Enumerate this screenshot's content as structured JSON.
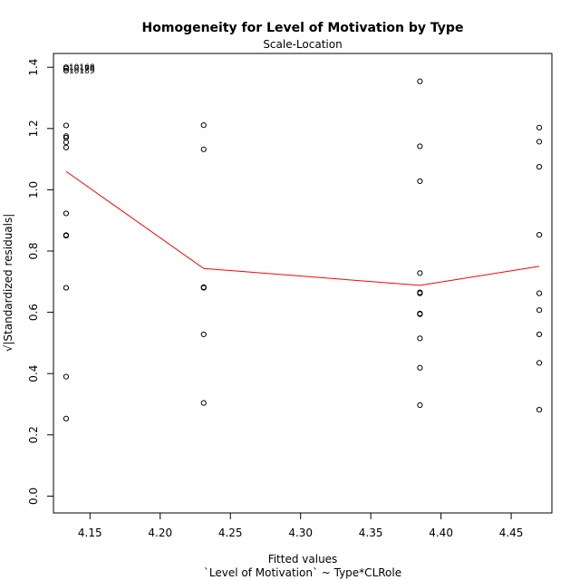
{
  "chart_data": {
    "type": "scatter",
    "title": "Homogeneity for Level of Motivation by Type",
    "subtitle": "Scale-Location",
    "xlabel": "Fitted values",
    "xlabel2": "`Level of Motivation` ~ Type*CLRole",
    "ylabel": "√|Standardized residuals|",
    "xlim": [
      4.124,
      4.479
    ],
    "ylim": [
      -0.055,
      1.445
    ],
    "xticks": [
      4.15,
      4.2,
      4.25,
      4.3,
      4.35,
      4.4,
      4.45
    ],
    "xtick_labels": [
      "4.15",
      "4.20",
      "4.25",
      "4.30",
      "4.35",
      "4.40",
      "4.45"
    ],
    "yticks": [
      0.0,
      0.2,
      0.4,
      0.6,
      0.8,
      1.0,
      1.2,
      1.4
    ],
    "ytick_labels": [
      "0.0",
      "0.2",
      "0.4",
      "0.6",
      "0.8",
      "1.0",
      "1.2",
      "1.4"
    ],
    "grid": false,
    "points": [
      {
        "x": 4.133,
        "y": 1.4
      },
      {
        "x": 4.133,
        "y": 1.396
      },
      {
        "x": 4.133,
        "y": 1.389
      },
      {
        "x": 4.133,
        "y": 1.21
      },
      {
        "x": 4.133,
        "y": 1.175
      },
      {
        "x": 4.133,
        "y": 1.17
      },
      {
        "x": 4.133,
        "y": 1.155
      },
      {
        "x": 4.133,
        "y": 1.138
      },
      {
        "x": 4.133,
        "y": 0.923
      },
      {
        "x": 4.133,
        "y": 0.852
      },
      {
        "x": 4.133,
        "y": 0.85
      },
      {
        "x": 4.133,
        "y": 0.68
      },
      {
        "x": 4.133,
        "y": 0.39
      },
      {
        "x": 4.133,
        "y": 0.253
      },
      {
        "x": 4.231,
        "y": 1.211
      },
      {
        "x": 4.231,
        "y": 1.132
      },
      {
        "x": 4.231,
        "y": 0.682
      },
      {
        "x": 4.231,
        "y": 0.68
      },
      {
        "x": 4.231,
        "y": 0.528
      },
      {
        "x": 4.231,
        "y": 0.304
      },
      {
        "x": 4.385,
        "y": 1.354
      },
      {
        "x": 4.385,
        "y": 1.142
      },
      {
        "x": 4.385,
        "y": 1.028
      },
      {
        "x": 4.385,
        "y": 0.728
      },
      {
        "x": 4.385,
        "y": 0.665
      },
      {
        "x": 4.385,
        "y": 0.662
      },
      {
        "x": 4.385,
        "y": 0.596
      },
      {
        "x": 4.385,
        "y": 0.594
      },
      {
        "x": 4.385,
        "y": 0.515
      },
      {
        "x": 4.385,
        "y": 0.419
      },
      {
        "x": 4.385,
        "y": 0.297
      },
      {
        "x": 4.47,
        "y": 1.203
      },
      {
        "x": 4.47,
        "y": 1.157
      },
      {
        "x": 4.47,
        "y": 1.075
      },
      {
        "x": 4.47,
        "y": 0.853
      },
      {
        "x": 4.47,
        "y": 0.662
      },
      {
        "x": 4.47,
        "y": 0.607
      },
      {
        "x": 4.47,
        "y": 0.528
      },
      {
        "x": 4.47,
        "y": 0.435
      },
      {
        "x": 4.47,
        "y": 0.282
      }
    ],
    "smooth_line": {
      "color": "#ff0000",
      "x": [
        4.133,
        4.231,
        4.385,
        4.47
      ],
      "y": [
        1.06,
        0.743,
        0.688,
        0.75
      ]
    },
    "point_labels": [
      {
        "text": "10168",
        "x": 4.133,
        "y": 1.4
      },
      {
        "text": "10178",
        "x": 4.133,
        "y": 1.396
      },
      {
        "text": "10189",
        "x": 4.133,
        "y": 1.389
      }
    ]
  }
}
